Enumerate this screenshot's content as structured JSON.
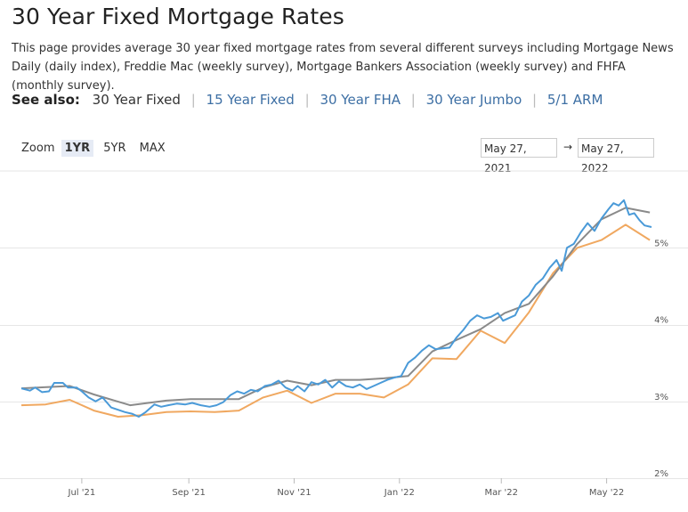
{
  "page": {
    "title": "30 Year Fixed Mortgage Rates",
    "intro": "This page provides average 30 year fixed mortgage rates from several different surveys including Mortgage News Daily (daily index), Freddie Mac (weekly survey), Mortgage Bankers Association (weekly survey) and FHFA (monthly survey).",
    "see_also_label": "See also:",
    "see_also_links": [
      "30 Year Fixed",
      "15 Year Fixed",
      "30 Year FHA",
      "30 Year Jumbo",
      "5/1 ARM"
    ]
  },
  "controls": {
    "zoom_label": "Zoom",
    "zoom_options": [
      "1YR",
      "5YR",
      "MAX"
    ],
    "zoom_active": "1YR",
    "range_from": "May 27, 2021",
    "range_separator": "→",
    "range_to": "May 27, 2022"
  },
  "colors": {
    "series_daily": "#4a9ad8",
    "series_gray": "#8a8a8a",
    "series_orange": "#f0a860",
    "grid": "#e6e6e6"
  },
  "chart_data": {
    "type": "line",
    "y_tick_labels": [
      "2%",
      "3%",
      "4%",
      "5%"
    ],
    "y_ticks": [
      2,
      3,
      4,
      5
    ],
    "ylim": [
      2,
      6.0
    ],
    "x_tick_labels": [
      "Jul '21",
      "Sep '21",
      "Nov '21",
      "Jan '22",
      "Mar '22",
      "May '22"
    ],
    "x_ticks": [
      "2021-07-01",
      "2021-09-01",
      "2021-11-01",
      "2022-01-01",
      "2022-03-01",
      "2022-05-01"
    ],
    "xlim": [
      "2021-05-27",
      "2022-05-27"
    ],
    "grid": true,
    "series": [
      {
        "color_key": "series_daily",
        "points": [
          [
            "2021-05-27",
            3.17
          ],
          [
            "2021-06-01",
            3.14
          ],
          [
            "2021-06-04",
            3.18
          ],
          [
            "2021-06-08",
            3.12
          ],
          [
            "2021-06-12",
            3.13
          ],
          [
            "2021-06-15",
            3.24
          ],
          [
            "2021-06-20",
            3.24
          ],
          [
            "2021-06-23",
            3.18
          ],
          [
            "2021-06-28",
            3.18
          ],
          [
            "2021-07-01",
            3.13
          ],
          [
            "2021-07-05",
            3.05
          ],
          [
            "2021-07-09",
            3.0
          ],
          [
            "2021-07-13",
            3.05
          ],
          [
            "2021-07-18",
            2.92
          ],
          [
            "2021-07-22",
            2.89
          ],
          [
            "2021-07-26",
            2.86
          ],
          [
            "2021-07-30",
            2.84
          ],
          [
            "2021-08-03",
            2.8
          ],
          [
            "2021-08-07",
            2.86
          ],
          [
            "2021-08-12",
            2.96
          ],
          [
            "2021-08-16",
            2.93
          ],
          [
            "2021-08-20",
            2.95
          ],
          [
            "2021-08-25",
            2.97
          ],
          [
            "2021-08-30",
            2.96
          ],
          [
            "2021-09-03",
            2.98
          ],
          [
            "2021-09-08",
            2.95
          ],
          [
            "2021-09-13",
            2.93
          ],
          [
            "2021-09-17",
            2.95
          ],
          [
            "2021-09-21",
            2.99
          ],
          [
            "2021-09-25",
            3.08
          ],
          [
            "2021-09-29",
            3.13
          ],
          [
            "2021-10-03",
            3.1
          ],
          [
            "2021-10-07",
            3.15
          ],
          [
            "2021-10-11",
            3.13
          ],
          [
            "2021-10-15",
            3.2
          ],
          [
            "2021-10-19",
            3.22
          ],
          [
            "2021-10-23",
            3.27
          ],
          [
            "2021-10-27",
            3.18
          ],
          [
            "2021-10-31",
            3.14
          ],
          [
            "2021-11-03",
            3.2
          ],
          [
            "2021-11-07",
            3.13
          ],
          [
            "2021-11-11",
            3.25
          ],
          [
            "2021-11-15",
            3.22
          ],
          [
            "2021-11-19",
            3.28
          ],
          [
            "2021-11-23",
            3.18
          ],
          [
            "2021-11-27",
            3.26
          ],
          [
            "2021-12-01",
            3.2
          ],
          [
            "2021-12-05",
            3.18
          ],
          [
            "2021-12-09",
            3.22
          ],
          [
            "2021-12-13",
            3.16
          ],
          [
            "2021-12-17",
            3.2
          ],
          [
            "2021-12-21",
            3.24
          ],
          [
            "2021-12-25",
            3.28
          ],
          [
            "2021-12-29",
            3.31
          ],
          [
            "2022-01-02",
            3.33
          ],
          [
            "2022-01-06",
            3.5
          ],
          [
            "2022-01-10",
            3.57
          ],
          [
            "2022-01-14",
            3.66
          ],
          [
            "2022-01-18",
            3.73
          ],
          [
            "2022-01-22",
            3.68
          ],
          [
            "2022-01-26",
            3.69
          ],
          [
            "2022-01-30",
            3.7
          ],
          [
            "2022-02-03",
            3.83
          ],
          [
            "2022-02-07",
            3.93
          ],
          [
            "2022-02-11",
            4.05
          ],
          [
            "2022-02-15",
            4.12
          ],
          [
            "2022-02-19",
            4.08
          ],
          [
            "2022-02-23",
            4.1
          ],
          [
            "2022-02-27",
            4.15
          ],
          [
            "2022-03-02",
            4.05
          ],
          [
            "2022-03-06",
            4.09
          ],
          [
            "2022-03-09",
            4.12
          ],
          [
            "2022-03-13",
            4.3
          ],
          [
            "2022-03-17",
            4.38
          ],
          [
            "2022-03-21",
            4.52
          ],
          [
            "2022-03-25",
            4.6
          ],
          [
            "2022-03-29",
            4.74
          ],
          [
            "2022-04-02",
            4.84
          ],
          [
            "2022-04-05",
            4.7
          ],
          [
            "2022-04-08",
            5.0
          ],
          [
            "2022-04-12",
            5.05
          ],
          [
            "2022-04-16",
            5.2
          ],
          [
            "2022-04-20",
            5.32
          ],
          [
            "2022-04-24",
            5.22
          ],
          [
            "2022-04-28",
            5.38
          ],
          [
            "2022-05-02",
            5.5
          ],
          [
            "2022-05-05",
            5.58
          ],
          [
            "2022-05-08",
            5.55
          ],
          [
            "2022-05-11",
            5.62
          ],
          [
            "2022-05-14",
            5.43
          ],
          [
            "2022-05-17",
            5.45
          ],
          [
            "2022-05-20",
            5.36
          ],
          [
            "2022-05-23",
            5.29
          ],
          [
            "2022-05-27",
            5.27
          ]
        ]
      },
      {
        "color_key": "series_gray",
        "points": [
          [
            "2021-05-27",
            3.17
          ],
          [
            "2021-06-24",
            3.2
          ],
          [
            "2021-07-08",
            3.09
          ],
          [
            "2021-07-29",
            2.95
          ],
          [
            "2021-08-19",
            3.01
          ],
          [
            "2021-09-02",
            3.03
          ],
          [
            "2021-09-30",
            3.03
          ],
          [
            "2021-10-14",
            3.18
          ],
          [
            "2021-10-28",
            3.27
          ],
          [
            "2021-11-11",
            3.21
          ],
          [
            "2021-11-25",
            3.28
          ],
          [
            "2021-12-09",
            3.28
          ],
          [
            "2021-12-23",
            3.3
          ],
          [
            "2022-01-06",
            3.33
          ],
          [
            "2022-01-20",
            3.65
          ],
          [
            "2022-02-03",
            3.8
          ],
          [
            "2022-02-17",
            3.94
          ],
          [
            "2022-03-03",
            4.15
          ],
          [
            "2022-03-17",
            4.27
          ],
          [
            "2022-03-31",
            4.63
          ],
          [
            "2022-04-14",
            5.05
          ],
          [
            "2022-04-28",
            5.37
          ],
          [
            "2022-05-12",
            5.52
          ],
          [
            "2022-05-26",
            5.46
          ]
        ]
      },
      {
        "color_key": "series_orange",
        "points": [
          [
            "2021-05-27",
            2.95
          ],
          [
            "2021-06-10",
            2.96
          ],
          [
            "2021-06-24",
            3.02
          ],
          [
            "2021-07-08",
            2.88
          ],
          [
            "2021-07-22",
            2.8
          ],
          [
            "2021-08-05",
            2.82
          ],
          [
            "2021-08-19",
            2.86
          ],
          [
            "2021-09-02",
            2.87
          ],
          [
            "2021-09-16",
            2.86
          ],
          [
            "2021-09-30",
            2.88
          ],
          [
            "2021-10-14",
            3.05
          ],
          [
            "2021-10-28",
            3.14
          ],
          [
            "2021-11-11",
            2.98
          ],
          [
            "2021-11-25",
            3.1
          ],
          [
            "2021-12-09",
            3.1
          ],
          [
            "2021-12-23",
            3.05
          ],
          [
            "2022-01-06",
            3.22
          ],
          [
            "2022-01-20",
            3.56
          ],
          [
            "2022-02-03",
            3.55
          ],
          [
            "2022-02-17",
            3.92
          ],
          [
            "2022-03-03",
            3.76
          ],
          [
            "2022-03-17",
            4.16
          ],
          [
            "2022-03-31",
            4.67
          ],
          [
            "2022-04-14",
            5.0
          ],
          [
            "2022-04-28",
            5.1
          ],
          [
            "2022-05-12",
            5.3
          ],
          [
            "2022-05-26",
            5.1
          ]
        ]
      }
    ]
  }
}
